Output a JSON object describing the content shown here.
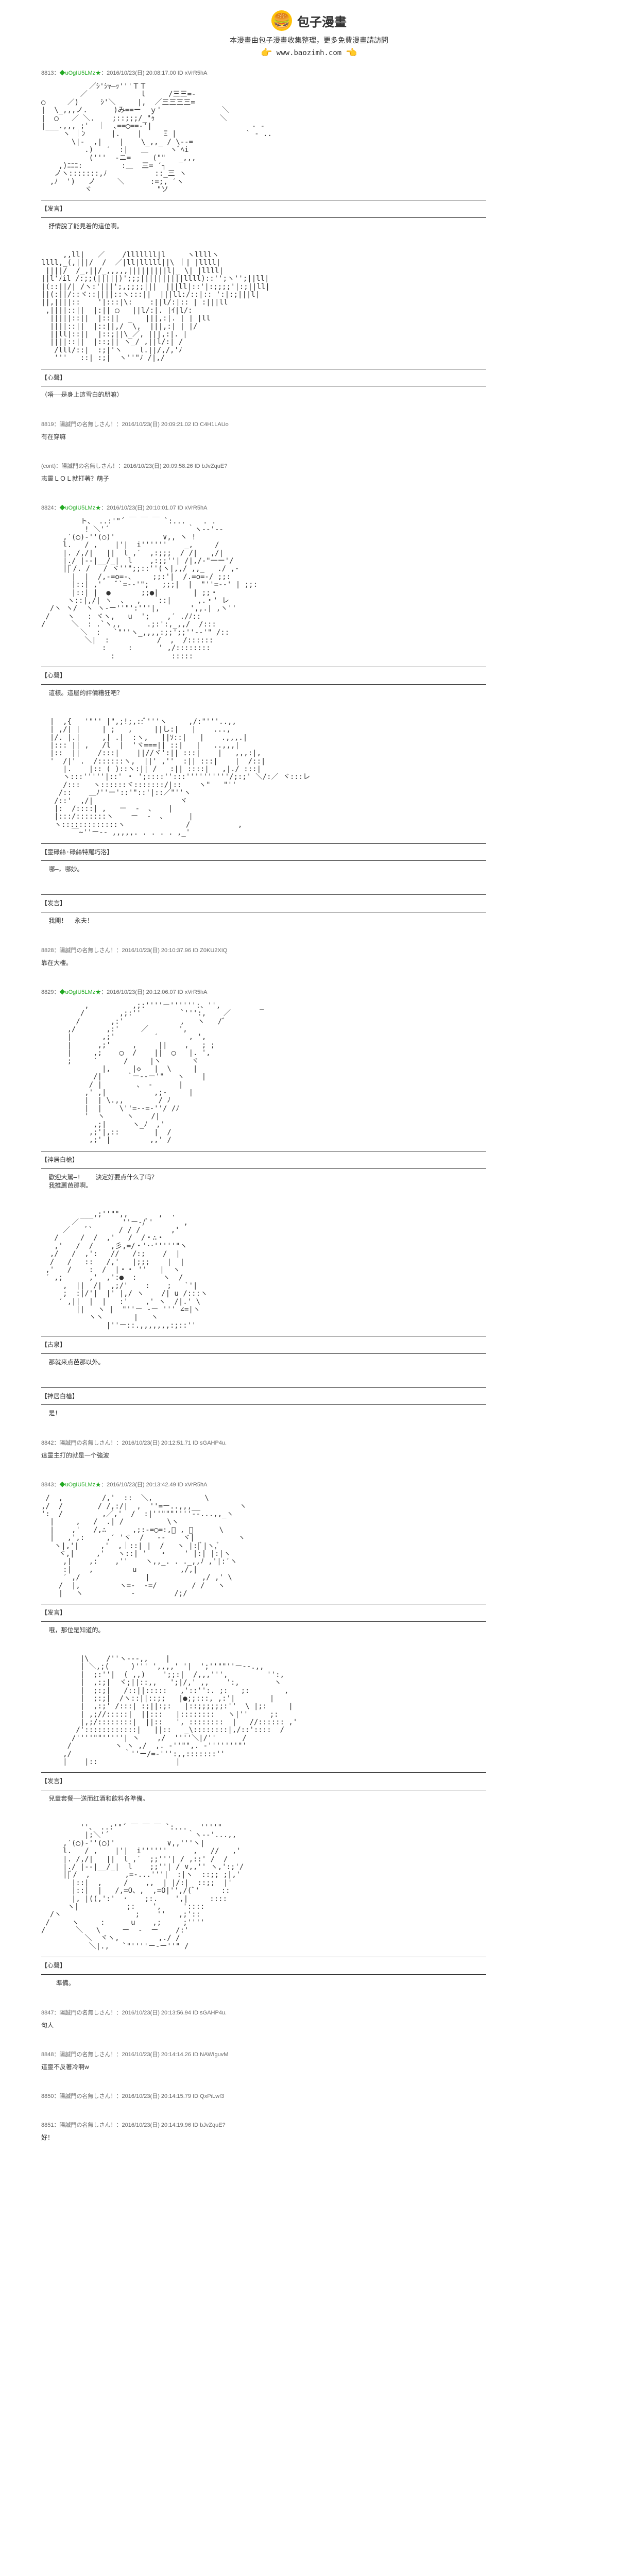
{
  "header": {
    "site_name": "包子漫畫",
    "subtitle": "本漫畫由包子漫畫收集整理，更多免費漫畫請訪問",
    "url": "www.baozimh.com",
    "logo_emoji": "🍔",
    "hand_left": "👉",
    "hand_right": "👈"
  },
  "posts": [
    {
      "num": "8813",
      "user": "◆uOgIU5LMz★",
      "date": "2016/10/23(日) 20:08:17.00",
      "id": "ID xVrR5hA",
      "ascii": "           ／ｼ'ｼｬ—ｯ'''ＴＴ\n         ／            ｌ     /三三=-\n○     ／)     ｼ'＼     |,  ／三三三三=\n|  \\_,,,ノ.      )み==ー  ｙ'              ＼\n|  ◯   ／ ＼.    ;::;;;/_\"ｩ               ＼\n|___.,,, ;'  ｜  ､==◯==-'|                       ‐ -\n     ヽ ｜ﾝ      |.    |     Ξ |                ` - ..\n       \\|‐  ,|    |    \\_,,_ / \\--=\n          .)   ′  :|   ＿     ヽﾞﾍi\n           ('''  -ニ=     (\"\"   _,,,\n    ,)ﾆﾆﾆ:         :＿  三= ′┐\n   ノヽ:::::::,ﾉ           ::_三 ヽ\n  ,ﾉ  ')   ノ     ＼      :=;, ′ヽ\n          ヾ               \"ソ",
      "separator_label": "【发言】",
      "dialogue": "  抒情脫了能見着的這位啊。"
    },
    {
      "num": "",
      "user": "",
      "date": "",
      "id": "",
      "ascii": "     ,,ll|   ／    /lllllll|l     ヽllllヽ\nllll,_(,|||/  /  ／|ll|lllll||\\ ｜| |llll|\n ||||/  /_,||/_,,,,,|||||||||l|_ \\| |llll|\n||l'ﾉil /:;;(|||||)';;;||||||||||llll)::'';ヽ'';||ll|\n|(::||/| /ヽ:'|||';,;;;;|||  |||ll|::'|:;;;;'|:;||ll|\n||(:||/::ヾ::||||::ヽ:::||  |||ll:/::|:: ':|:;|||l|\n||,||||::    '|:::|\\:    :||l/:|:: | :|||ll\n ,||||::||  |:|| ◯   ||l/:|. |ｲ|l/:\n  |||||::||  |::||  _   |||,:|. | | |ll\n  ||||::||  |::||,/  \\,  |||,:| | |/\n  ||ll|::||  |::;||\\_／, |||,:|. |\n  ||||::||  |::;|| ヽ_/ ,||l/:| /\n   /lll/::|  :;|'ヽ    l.||/,/,'ﾉ\n   '''   ::| :;|  ヽ''\"ﾉ /|,/",
      "separator_label": "【心聲】",
      "dialogue": "（唔——是身上這雪白的朋嘛）"
    },
    {
      "num": "8819",
      "user": "陽誠門の名無しさん！",
      "date": "2016/10/23(日) 20:09:21.02",
      "id": "ID C4H1LAUo",
      "ascii": "",
      "separator_label": "",
      "dialogue": "有在穿嘛"
    },
    {
      "num": "(cont)",
      "user": "陽誠門の名無しさん！",
      "date": "2016/10/23(日) 20:09:58.26",
      "id": "ID bJvZquE?",
      "ascii": "",
      "separator_label": "",
      "dialogue": "志靈ＬＯＬ就打著？萌子"
    },
    {
      "num": "8824",
      "user": "◆uOgIU5LMz★",
      "date": "2016/10/23(日) 20:10:01.07",
      "id": "ID xVrR5hA",
      "ascii": "         ト、 ..:'\"´ ￣ ￣ ￣ `:...    . .\n          ! ＼'´                  ｀ヽ--'--\n     ,′(◯)‐''(○)'           ∨,, ヽ !\n     l.   / ,    |'|  i''''''    _,     /\n     |. /,/|   ||  l ,′  ,:;;;  / /|   ,/|\n     |./ |--|__/_|  l    ,:;;''| /|,/‐\"一ー'/\n     ||ﾞ/. /   / ヾ''\";;::''(ヽ|,,/ ,,_   ./ ,-\n       |  |  /,-=o=-、    ;;:'|  /.=o=-/ ;;:\n       |::| ,'   ﾞ`=--'\";   ;;;|  |  \"''=--' | ;;:\n       |::| |  ●       ;;●|        | ;;・\n      ヽ::|,/| ヽ  、  ,    ::|      ,.・' レ\n  /ヽ ヽ/  ヽ ヽ-ー''\"':'''|,       ',,.| ,ヽ''\n /    ヽ   : ヾヽ,   u  ';    ,′ ./ﾉ::\n/      ＼  : .`ヽ,,      .;:':,_,,/  /:::\n         ＼  :   `\"''ヽ_,,,,:;;';;''-‐'\" /::\n          ＼|  :           /  ,  /::::::\n              :     :      ' ,/::::::::\n                :             :::::",
      "separator_label": "【心聲】",
      "dialogue": "  這樣。這屋的評價糟狂吧？"
    },
    {
      "num": "",
      "user": "",
      "date": "",
      "id": "",
      "ascii": "  |  ,{   '\"'' |\",;!;,::ﾞ'''ヽ     ,/:\"'''..,,\n  | ,/| |     | ;   ,     ||し:|   |    ...,\n  |/. |.|     ,| .|  :ヽ,   ||ｿ::|   |    .,,,.|\n  |::: || ,   /l  |  'ヾ===|| ::|   |   ..,,,|\n  |::  ||    /:::|    ||//ヾ':|| :::|    |   ,,,:|,\n  '  /|' .  /::::::ヽ,  ||' ,''  :|| :::|    |  /::|\n     |.    |:: ( )::ヽ:|| /   :|| ::::|   ,|./ :::|\n     ヽ:::'''''|::' ・ ';::::'':::''''''''''/;:;' ＼/:／ ヾ:::レ\n     /:::   ヽ::::::ヾ:::::::/|::    ヽ\"   \"''\n    /::    ＿ﾉ''ー'::'\"::'|::／\"''ヽ\n   /::'  ,/|                    ヾ\n   |:  /::::| ,   ー  -  、   |\n   |:::/:::::::ヽ    ー  -  、     |\n   ヽ:::::::::::::ヽ              /           ,\n       ￣~''ー-- ,,,,,. . . . . ,_'",
      "separator_label": "【靈碌絲·碌絲特羅巧洛】",
      "dialogue": "  哪—，哪妙。"
    },
    {
      "num": "",
      "user": "",
      "date": "",
      "id": "",
      "ascii": "",
      "separator_label": "【发言】",
      "dialogue": "  我開！  永夫！"
    },
    {
      "num": "8828",
      "user": "陽誠門の名無しさん！",
      "date": "2016/10/23(日) 20:10:37.96",
      "id": "ID Z0KU2XIQ",
      "ascii": "",
      "separator_label": "",
      "dialogue": "靠在大樓。"
    },
    {
      "num": "8829",
      "user": "◆uOgIU5LMz★",
      "date": "2016/10/23(日) 20:12:06.07",
      "id": "ID xVrR5hA",
      "ascii": "          ,          ,;:''''ー'''''':、'',         _\n         /        ,;:''         `''':,    ／\n        /       ,:'             ,   ヽ   /゛\n      ,/       ,:'     ／       ',\n      |       ,;'         ′       , ',\n      |      ,;'     ,     ||    ,   ; ;\n      |     ,;    ◯  /    ||  ◯   |. ',\n      ;     ′      /     |ヽ       ヾ\n              |,     |◇   |  \\     |\n            /|      `ー--ー'\"   ヽ    |\n           / |        、 -      |\n          ,' ,|           ,;-     |\n          |  | \\.,,        / ﾉ\n          |  |    \\''=--=-''/ /ﾉ\n          '  ヽ     ヽ    /|\n            ,;|      ヽ_ﾉ  ,'\n           ,;'|,::        |  /\n           ,;' |         ,,' /",
      "separator_label": "【神居白槍】",
      "dialogue": "  歡迎大駕—!    決定好要点什么了吗？\n  我推薦芭那啊。"
    },
    {
      "num": "",
      "user": "",
      "date": "",
      "id": "",
      "ascii": "         ___,;''\"\",,       ,  .\n       ／          ''ー-/ﾞ'       ,\n     ／    ﾞ`      / / /       ,'\n   /     /  /  ,'   /  /・∴・\n   ,'   /  /    ,彡,=/・'‥'''''\"ヽ\n  ,/   /  ,':   //   /:;    /  |\n  /   /   ::   /,'   |;;;    |  |\n ,'   /    :  /  |・・ ''   |  ヽ\n ′ ,;      ,'  ,':●  :      ヽ  /\n     ,  ||  /|  ,;/'    :    ;   `'|\n     ;  :|/'|  |' |,/ ヽ    /| u /:::ヽ\n    ′ ,||  |  |   :'    ,' ヽ  /|.' \\\n        ||   ヽ |  \"''ー -ー ''' ∠=|ヽ\n           ヽヽ       |   ヽ\n               |''ー::.,,,,,,,:;::''",
      "separator_label": "【古泉】",
      "dialogue": "  那就来点芭那以外。"
    },
    {
      "num": "",
      "user": "",
      "date": "",
      "id": "",
      "ascii": "",
      "separator_label": "【神居白槍】",
      "dialogue": "  是！"
    },
    {
      "num": "8842",
      "user": "陽誠門の名無しさん！",
      "date": "2016/10/23(日) 20:12:51.71",
      "id": "ID sGAHP4u.",
      "ascii": "",
      "separator_label": "",
      "dialogue": "這靈主打的就是一个強波"
    },
    {
      "num": "8843",
      "user": "◆uOgIU5LMz★",
      "date": "2016/10/23(日) 20:13:42.49",
      "id": "ID xVrR5hA",
      "ascii": " /  ,         /,'  ::  ＼,            \\\n,/  /        / /,:/|  ,  ''=ー..,,,__         ヽ\n':  /         ,／,'  /  :|''\"\"\"''''--...,,_ヽ\n  |     ,   /  .| /          \\ヽ\n  |    ,'   /,∴      ,;:-=◯=:,ﾞ , ﾞ      \\\n  |   ,',:     ,′ 'ヾ  /   --    ヾ|          ヽ\n   ヽ|,'|     ,'  ,｜::| |  /   ヽ |:|ﾞ|ヽ,ﾞ\n    ヾ,|     ,'   ヽ::| '   ・    ' |:| |:|ヽ\n     ,|    ,:    ,''    ヽ,,_. . ._,,ﾉ ,'|:′ヽ\n     :|    ,         u          ,/,|\n     ′ ,/               |            ,/ ,' \\\n    /  |,         ヽ=-  -=/        / /   ヽ\n    |   ヽ           -         /;/",
      "separator_label": "【发言】",
      "dialogue": "  哦，那位是知道的。"
    },
    {
      "num": "",
      "user": "",
      "date": "",
      "id": "",
      "ascii": "         |\\    /''ヽ‐--,,    |\n         | ＼,;(     )''' ',,,,' '|  ';''\"\"''ー--.,,\n         |  ;:''|  ( ,,)    ';;:|  /,,,''',         '':,\n         |  ,:;|  ヾ;||::,,   ';|/,' ,,    ':,        ヽ\n         |  ;:;|   /::||:::::   ,'::'':. ;:   ;:        ,\n         |  ;:;|  /ヽ::||::;;   |●;;:::, ,:'|        |\n         |  ,:;' /:::| :;||:;:   |::;;;;;;:''  \\ |;:     |\n         | ,;//:::::|  ||:::   |::::::::   ヽ|''     ;:\n         |,;/::::::::|  ||::   ', ::::::::  |   //:::::: ,'\n        /'::::::::::::|   ||::   _\\::::::::|,/::'::::  /\n       /''''\"\"'''''| ヽ    ,/  ''''＼|/''      /\n      /          ヽ ヽ ,/  ,. -''\"\",. -'''''''\"'\n     ,/            ｀''ー/=-''':,,:::::::''\n     |    |::                  |",
      "separator_label": "【发言】",
      "dialogue": "  兒童套餐——送而红酒和飲料各準備。"
    },
    {
      "num": "",
      "user": "",
      "date": "",
      "id": "",
      "ascii": "         ''、 ..:'\"´ ￣ ￣ ￣ `:...   ''''\"\n          |;＼'´                  ｀ヽ--'...,,\n     ,′(◯)‐''(◯)'            ∨,,'''ヽ|\n     l.   / ,    |'|  i''''''      ,   //   ,'\n     |. /,/|   ||  l ,′  ;;'''| / ,::' /  /\n     |./ |--|__/_|  l    ;;''| / ∨,,'' ヽ,':;'/\n     ||ﾞ/  ,        ,=-...'''|  :|ヽ  ::;; ;|,'\n       |::|  ,     /    ,,  | |/:|  ::;;  |'\n       |::|  |   /,=O、,  ,=O|'',/(ﾞ'     ::\n       |, |((,':'  ･    ;:.    ',|     ::::\n      ヽ|           ;:    ',     '::::\n  /ヽ                 ;    ''   ,;'::\n /     ヽ     :      u    ,;     ;''''\n/       ＼   \\     ー  -  ー    /:'\n          ＼  ヾヽ,         ,./ /\n           ＼|.,   `\"''''ー-ー''\" /",
      "separator_label": "【心聲】",
      "dialogue": "    準備。"
    },
    {
      "num": "8847",
      "user": "陽誠門の名無しさん！",
      "date": "2016/10/23(日) 20:13:56.94",
      "id": "ID sGAHP4u.",
      "ascii": "",
      "separator_label": "",
      "dialogue": "句人"
    },
    {
      "num": "8848",
      "user": "陽誠門の名無しさん！",
      "date": "2016/10/23(日) 20:14:14.26",
      "id": "ID NAWIguvM",
      "ascii": "",
      "separator_label": "",
      "dialogue": "這靈不反著冷啊w"
    },
    {
      "num": "8850",
      "user": "陽誠門の名無しさん！",
      "date": "2016/10/23(日) 20:14:15.79",
      "id": "ID QxPiLwf3",
      "ascii": "",
      "separator_label": "",
      "dialogue": ""
    },
    {
      "num": "8851",
      "user": "陽誠門の名無しさん！",
      "date": "2016/10/23(日) 20:14:19.96",
      "id": "ID bJvZquE?",
      "ascii": "",
      "separator_label": "",
      "dialogue": "好！"
    }
  ]
}
